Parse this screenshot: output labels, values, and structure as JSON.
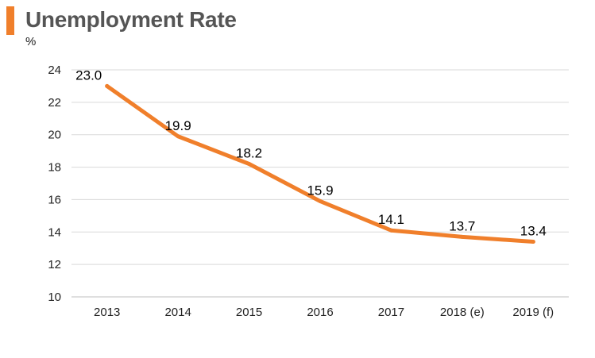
{
  "chart_data": {
    "type": "line",
    "title": "Unemployment Rate",
    "unit": "%",
    "categories": [
      "2013",
      "2014",
      "2015",
      "2016",
      "2017",
      "2018 (e)",
      "2019 (f)"
    ],
    "series": [
      {
        "values": [
          23.0,
          19.9,
          18.2,
          15.9,
          14.1,
          13.7,
          13.4
        ],
        "labels": [
          "23.0",
          "19.9",
          "18.2",
          "15.9",
          "14.1",
          "13.7",
          "13.4"
        ],
        "color": "#f07f2b"
      }
    ],
    "ylim": [
      10,
      24
    ],
    "yticks": [
      10,
      12,
      14,
      16,
      18,
      20,
      22,
      24
    ],
    "grid": true,
    "legend": "none"
  },
  "colors": {
    "accent": "#f07f2b",
    "grid": "#d9d9d9",
    "title": "#555555"
  }
}
